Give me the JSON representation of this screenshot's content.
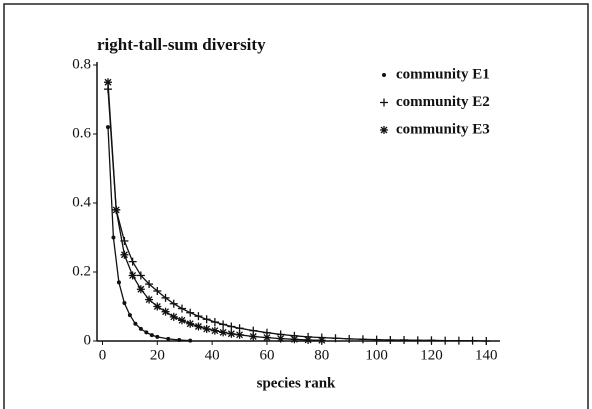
{
  "chart_data": {
    "type": "line",
    "title": "right-tall-sum diversity",
    "x_label": "species rank",
    "xlim": [
      -2,
      145
    ],
    "xticks": [
      0,
      20,
      40,
      60,
      80,
      100,
      120,
      140
    ],
    "ylim": [
      0,
      0.8
    ],
    "yticks": [
      0,
      0.2,
      0.4,
      0.6,
      0.8
    ],
    "grid": false,
    "legend": "upper right",
    "series": [
      {
        "name": "community E1",
        "color": "#111",
        "marker": "dot",
        "x": [
          2,
          4,
          6,
          8,
          10,
          12,
          14,
          16,
          18,
          20,
          24,
          28,
          32
        ],
        "values": [
          0.62,
          0.3,
          0.17,
          0.11,
          0.075,
          0.05,
          0.035,
          0.025,
          0.017,
          0.012,
          0.006,
          0.003,
          0.001
        ]
      },
      {
        "name": "community E2",
        "color": "#111",
        "marker": "plus",
        "x": [
          2,
          5,
          8,
          11,
          14,
          17,
          20,
          23,
          26,
          29,
          32,
          35,
          38,
          41,
          44,
          47,
          50,
          55,
          60,
          65,
          70,
          75,
          80,
          85,
          90,
          95,
          100,
          105,
          110,
          115,
          120,
          125,
          130,
          135,
          140
        ],
        "values": [
          0.73,
          0.38,
          0.29,
          0.23,
          0.19,
          0.165,
          0.145,
          0.125,
          0.108,
          0.094,
          0.082,
          0.072,
          0.063,
          0.055,
          0.048,
          0.042,
          0.037,
          0.03,
          0.024,
          0.019,
          0.015,
          0.012,
          0.01,
          0.008,
          0.006,
          0.005,
          0.004,
          0.003,
          0.003,
          0.002,
          0.002,
          0.001,
          0.001,
          0.001,
          0
        ]
      },
      {
        "name": "community E3",
        "color": "#111",
        "marker": "star",
        "x": [
          2,
          5,
          8,
          11,
          14,
          17,
          20,
          23,
          26,
          29,
          32,
          35,
          38,
          41,
          44,
          47,
          50,
          55,
          60,
          65,
          70,
          75,
          80
        ],
        "values": [
          0.75,
          0.38,
          0.25,
          0.19,
          0.15,
          0.12,
          0.1,
          0.085,
          0.07,
          0.06,
          0.05,
          0.042,
          0.035,
          0.03,
          0.025,
          0.021,
          0.018,
          0.013,
          0.01,
          0.007,
          0.005,
          0.003,
          0.002
        ]
      }
    ]
  }
}
